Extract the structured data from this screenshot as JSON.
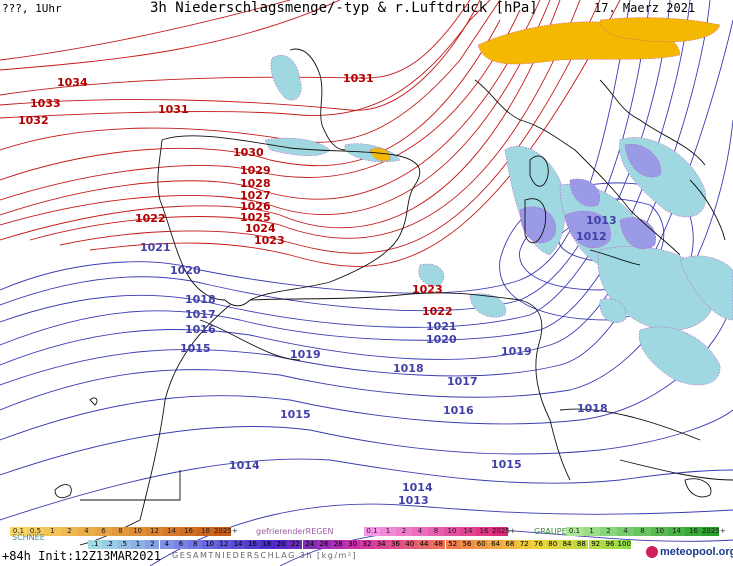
{
  "header": {
    "left": "???, 1Uhr",
    "title": "3h Niederschlagsmenge/-typ & r.Luftdruck [hPa]",
    "date": "17. Maerz 2021"
  },
  "isobar_labels_red": [
    {
      "v": "1034"
    },
    {
      "v": "1033"
    },
    {
      "v": "1032"
    },
    {
      "v": "1031"
    },
    {
      "v": "1031"
    },
    {
      "v": "1030"
    },
    {
      "v": "1029"
    },
    {
      "v": "1028"
    },
    {
      "v": "1027"
    },
    {
      "v": "1026"
    },
    {
      "v": "1025"
    },
    {
      "v": "1024"
    },
    {
      "v": "1023"
    },
    {
      "v": "1022"
    },
    {
      "v": "1023"
    },
    {
      "v": "1022"
    }
  ],
  "isobar_labels_blue": [
    {
      "v": "1021"
    },
    {
      "v": "1020"
    },
    {
      "v": "1018"
    },
    {
      "v": "1017"
    },
    {
      "v": "1016"
    },
    {
      "v": "1015"
    },
    {
      "v": "1021"
    },
    {
      "v": "1020"
    },
    {
      "v": "1019"
    },
    {
      "v": "1019"
    },
    {
      "v": "1018"
    },
    {
      "v": "1017"
    },
    {
      "v": "1016"
    },
    {
      "v": "1015"
    },
    {
      "v": "1014"
    },
    {
      "v": "1015"
    },
    {
      "v": "1014"
    },
    {
      "v": "1013"
    },
    {
      "v": "1018"
    },
    {
      "v": "1013"
    },
    {
      "v": "1012"
    }
  ],
  "legend": {
    "rain_label": "gefrierenderREGEN",
    "graupel_label": "GRAUPEL",
    "snow_label": "SCHNEE",
    "total_label": "GESAMTNIEDERSCHLAG 3h [kg/m²]",
    "rain_orange": [
      "0.1",
      "0.5",
      "1",
      "2",
      "4",
      "6",
      "8",
      "10",
      "12",
      "14",
      "16",
      "18",
      "2025+"
    ],
    "freezing": [
      "0.1",
      "1",
      "2",
      "4",
      "8",
      "10",
      "14",
      "16",
      "2025+"
    ],
    "graupel": [
      "0.1",
      "1",
      "2",
      "4",
      "8",
      "10",
      "14",
      "16",
      "2025+"
    ],
    "snow": [
      ".1",
      ".2",
      ".5",
      "1",
      "2",
      "4",
      "6",
      "8",
      "10",
      "12",
      "14",
      "16",
      "18",
      "20",
      "22",
      "24",
      "26",
      "28",
      "30",
      "32",
      "34",
      "36",
      "40",
      "44",
      "48",
      "52",
      "56",
      "60",
      "64",
      "68",
      "72",
      "76",
      "80",
      "84",
      "88",
      "92",
      "96",
      "100"
    ]
  },
  "footer": {
    "left": "+84h Init:12Z13MAR2021",
    "logo": "meteopool.org"
  },
  "colors": {
    "high_isobar": "#c41818",
    "low_isobar": "#3a3ab4",
    "label_red": "#b00000",
    "label_blue": "#4040a8",
    "rain": "#9fd8e0",
    "snow": "#9a9ae6",
    "accent_logo": "#d0205a"
  }
}
